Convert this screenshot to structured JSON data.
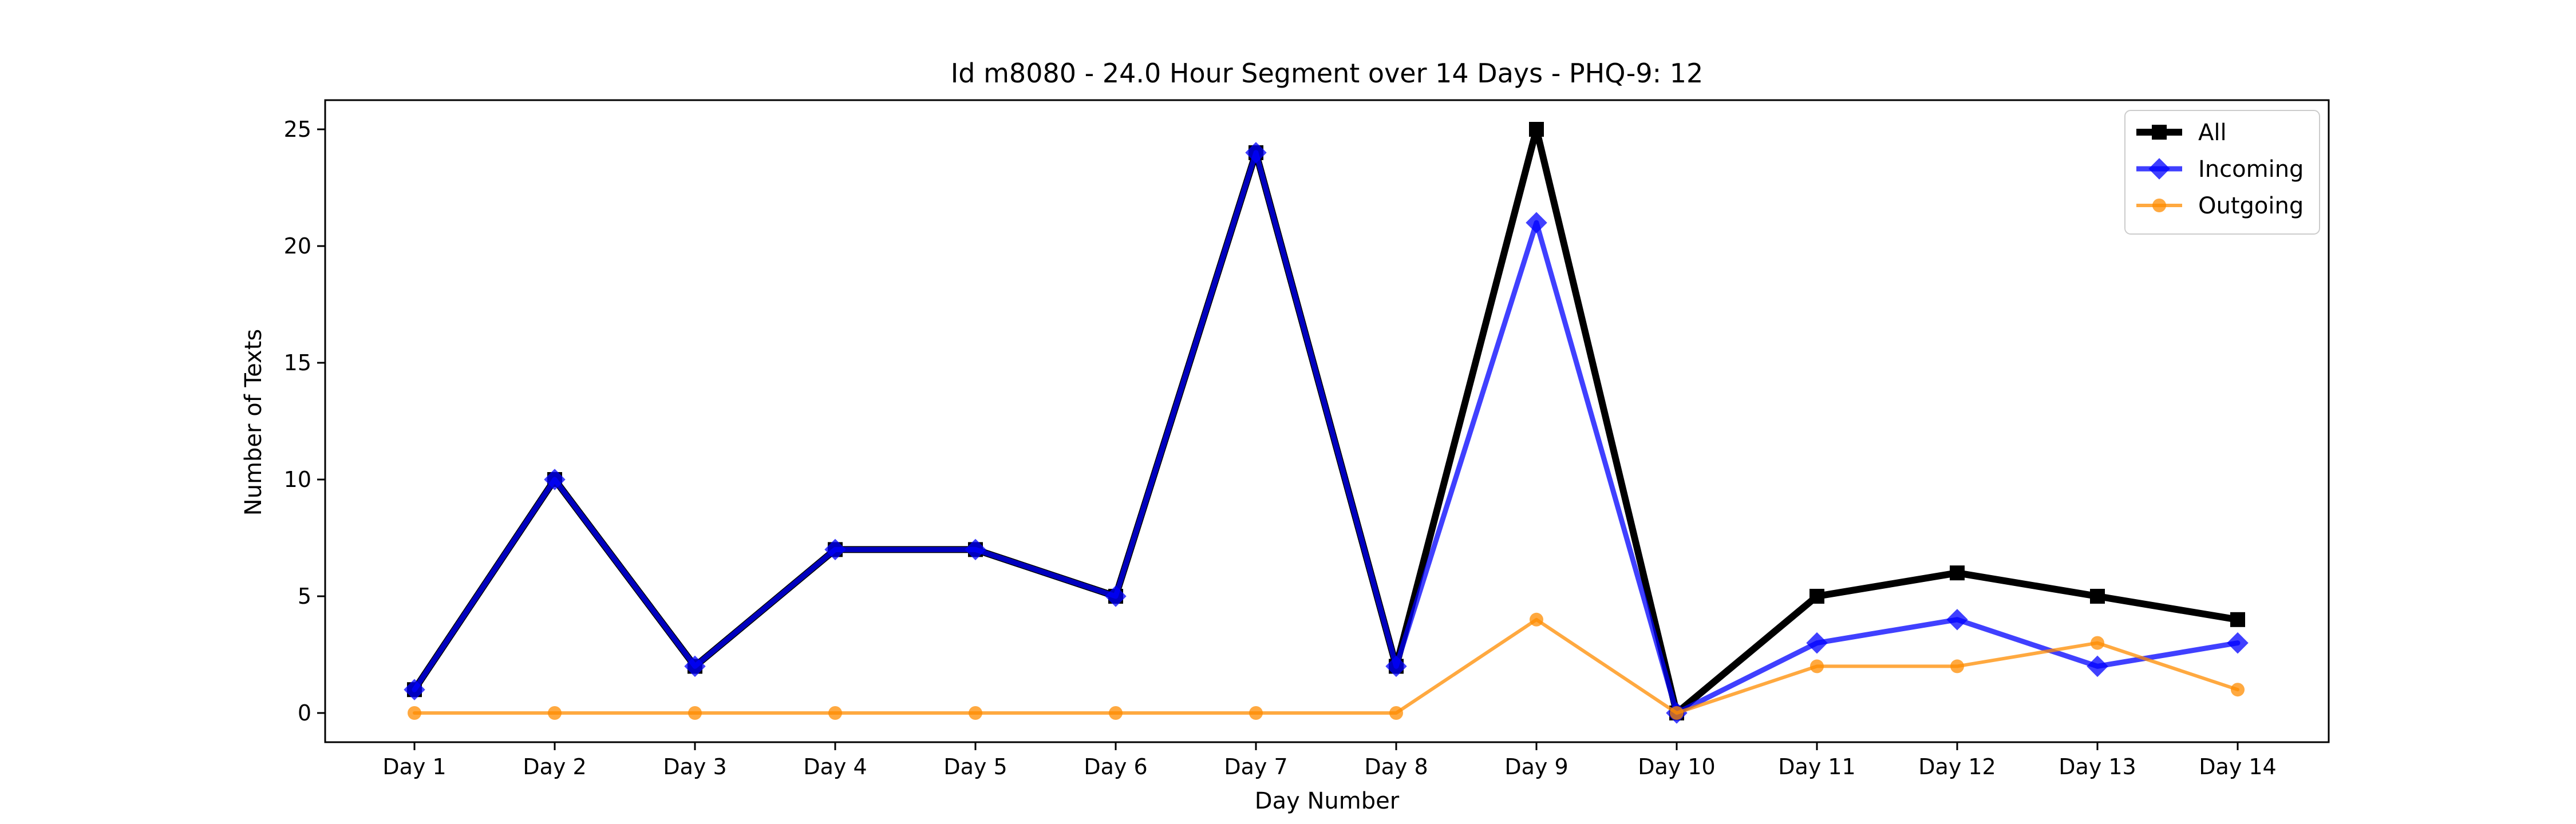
{
  "chart_data": {
    "type": "line",
    "title": "Id m8080 - 24.0 Hour Segment over 14 Days - PHQ-9: 12",
    "xlabel": "Day Number",
    "ylabel": "Number of Texts",
    "categories": [
      "Day 1",
      "Day 2",
      "Day 3",
      "Day 4",
      "Day 5",
      "Day 6",
      "Day 7",
      "Day 8",
      "Day 9",
      "Day 10",
      "Day 11",
      "Day 12",
      "Day 13",
      "Day 14"
    ],
    "ylim": [
      -1.25,
      26.25
    ],
    "yticks": [
      0,
      5,
      10,
      15,
      20,
      25
    ],
    "grid": false,
    "legend_position": "top-right",
    "series": [
      {
        "name": "All",
        "color": "#000000",
        "marker": "square",
        "values": [
          1,
          10,
          2,
          7,
          7,
          5,
          24,
          2,
          25,
          0,
          5,
          6,
          5,
          4
        ]
      },
      {
        "name": "Incoming",
        "color": "#0000ff",
        "marker": "diamond",
        "values": [
          1,
          10,
          2,
          7,
          7,
          5,
          24,
          2,
          21,
          0,
          3,
          4,
          2,
          3
        ]
      },
      {
        "name": "Outgoing",
        "color": "#ff8c00",
        "marker": "circle",
        "values": [
          0,
          0,
          0,
          0,
          0,
          0,
          0,
          0,
          4,
          0,
          2,
          2,
          3,
          1
        ]
      }
    ]
  }
}
